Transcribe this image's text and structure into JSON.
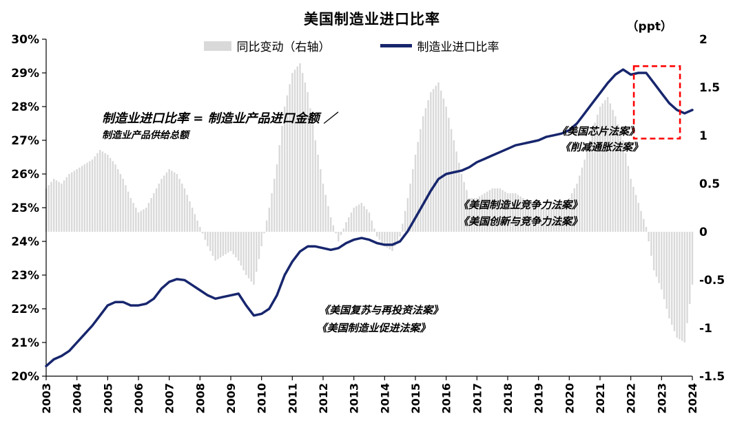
{
  "chart": {
    "title": "美国制造业进口比率",
    "right_axis_unit": "（ppt）",
    "legend": [
      {
        "label": "同比变动（右轴）",
        "type": "bar",
        "color": "#d9d9d9"
      },
      {
        "label": "制造业进口比率",
        "type": "line",
        "color": "#17266d"
      }
    ]
  },
  "chart_data": {
    "type": "line+bar",
    "title": "美国制造业进口比率",
    "x_start": 2003.0,
    "x_step": 0.25,
    "frequency": "quarterly (values estimated from figure)",
    "x_ticks": [
      "2003",
      "2004",
      "2005",
      "2006",
      "2007",
      "2008",
      "2009",
      "2010",
      "2011",
      "2012",
      "2013",
      "2014",
      "2015",
      "2016",
      "2017",
      "2018",
      "2019",
      "2020",
      "2021",
      "2022",
      "2023",
      "2024"
    ],
    "left_axis": {
      "min": 20,
      "max": 30,
      "ticks": [
        "30%",
        "29%",
        "28%",
        "27%",
        "26%",
        "25%",
        "24%",
        "23%",
        "22%",
        "21%",
        "20%"
      ]
    },
    "right_axis": {
      "min": -1.5,
      "max": 2,
      "unit": "ppt",
      "ticks": [
        "2",
        "1.5",
        "1",
        "0.5",
        "0",
        "-0.5",
        "-1",
        "-1.5"
      ]
    },
    "grid": false,
    "legend_position": "top-center",
    "series": [
      {
        "name": "制造业进口比率",
        "type": "line",
        "axis": "left",
        "color": "#17266d",
        "values": [
          20.3,
          20.5,
          20.6,
          20.75,
          21.0,
          21.25,
          21.5,
          21.8,
          22.1,
          22.2,
          22.2,
          22.1,
          22.1,
          22.15,
          22.3,
          22.6,
          22.8,
          22.88,
          22.85,
          22.7,
          22.55,
          22.4,
          22.3,
          22.35,
          22.4,
          22.45,
          22.1,
          21.8,
          21.85,
          22.0,
          22.4,
          23.0,
          23.4,
          23.7,
          23.85,
          23.85,
          23.8,
          23.75,
          23.8,
          23.95,
          24.05,
          24.1,
          24.05,
          23.95,
          23.9,
          23.9,
          24.0,
          24.3,
          24.7,
          25.1,
          25.5,
          25.85,
          26.0,
          26.05,
          26.1,
          26.2,
          26.35,
          26.45,
          26.55,
          26.65,
          26.75,
          26.85,
          26.9,
          26.95,
          27.0,
          27.1,
          27.15,
          27.2,
          27.3,
          27.5,
          27.8,
          28.1,
          28.4,
          28.7,
          28.95,
          29.1,
          28.95,
          29.0,
          29.0,
          28.7,
          28.4,
          28.1,
          27.9,
          27.8,
          27.9
        ]
      },
      {
        "name": "同比变动（右轴）",
        "type": "bar",
        "axis": "right",
        "color": "#d9d9d9",
        "values": [
          0.45,
          0.55,
          0.5,
          0.6,
          0.65,
          0.7,
          0.75,
          0.85,
          0.8,
          0.7,
          0.55,
          0.35,
          0.2,
          0.25,
          0.4,
          0.55,
          0.65,
          0.6,
          0.45,
          0.25,
          0.05,
          -0.15,
          -0.3,
          -0.25,
          -0.2,
          -0.3,
          -0.45,
          -0.55,
          -0.15,
          0.25,
          0.7,
          1.3,
          1.65,
          1.75,
          1.45,
          0.95,
          0.5,
          0.15,
          -0.1,
          0.1,
          0.25,
          0.3,
          0.2,
          -0.05,
          -0.15,
          -0.2,
          -0.05,
          0.35,
          0.8,
          1.2,
          1.45,
          1.55,
          1.3,
          0.95,
          0.6,
          0.35,
          0.35,
          0.4,
          0.45,
          0.45,
          0.4,
          0.4,
          0.35,
          0.3,
          0.25,
          0.25,
          0.25,
          0.3,
          0.35,
          0.5,
          0.75,
          1.05,
          1.3,
          1.4,
          1.2,
          0.95,
          0.55,
          0.3,
          0.05,
          -0.4,
          -0.6,
          -0.9,
          -1.1,
          -1.15,
          -0.55
        ]
      }
    ],
    "highlight_box": {
      "x0": 2022.1,
      "x1": 2023.6,
      "y0": 27.05,
      "y1": 29.2,
      "color": "#ff0000",
      "style": "dashed"
    },
    "annotations": [
      {
        "id": "formula-line1",
        "text": "制造业进口比率 = 制造业产品进口金额 ／"
      },
      {
        "id": "formula-line2",
        "text": "制造业产品供给总额"
      },
      {
        "id": "chips-act",
        "text": "《美国芯片法案》"
      },
      {
        "id": "inflation-act",
        "text": "《削减通胀法案》"
      },
      {
        "id": "competitiveness-act",
        "text": "《美国制造业竞争力法案》"
      },
      {
        "id": "innovation-act",
        "text": "《美国创新与竞争力法案》"
      },
      {
        "id": "recovery-act",
        "text": "《美国复苏与再投资法案》"
      },
      {
        "id": "promotion-act",
        "text": "《美国制造业促进法案》"
      }
    ]
  }
}
